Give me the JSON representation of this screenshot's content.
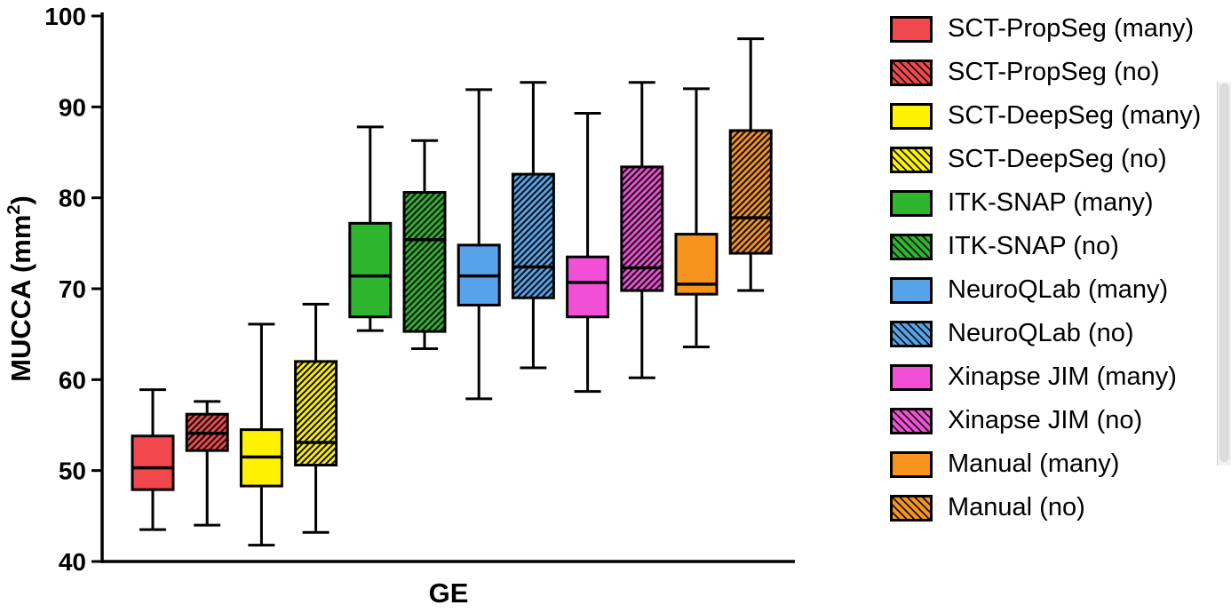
{
  "figure": {
    "ylabel_prefix": "MUCCA (mm",
    "ylabel_sup": "2",
    "ylabel_suffix": ")"
  },
  "chart_data": {
    "type": "boxplot",
    "title": "",
    "xlabel": "GE",
    "ylabel": "MUCCA (mm^2)",
    "ylim": [
      40,
      100
    ],
    "yticks": [
      40,
      50,
      60,
      70,
      80,
      90,
      100
    ],
    "grid": false,
    "legend_position": "right",
    "series": [
      {
        "name": "SCT-PropSeg (many)",
        "color": "#F1484E",
        "hatch": false,
        "low": 43.5,
        "q1": 47.9,
        "median": 50.3,
        "q3": 53.8,
        "high": 58.9
      },
      {
        "name": "SCT-PropSeg (no)",
        "color": "#F1484E",
        "hatch": true,
        "low": 44.0,
        "q1": 52.2,
        "median": 54.1,
        "q3": 56.2,
        "high": 57.6
      },
      {
        "name": "SCT-DeepSeg (many)",
        "color": "#FFF200",
        "hatch": false,
        "low": 41.8,
        "q1": 48.3,
        "median": 51.5,
        "q3": 54.5,
        "high": 66.1
      },
      {
        "name": "SCT-DeepSeg (no)",
        "color": "#FFF200",
        "hatch": true,
        "low": 43.2,
        "q1": 50.6,
        "median": 53.1,
        "q3": 62.0,
        "high": 68.3
      },
      {
        "name": "ITK-SNAP (many)",
        "color": "#2DB52D",
        "hatch": false,
        "low": 65.4,
        "q1": 66.9,
        "median": 71.4,
        "q3": 77.2,
        "high": 87.8
      },
      {
        "name": "ITK-SNAP (no)",
        "color": "#2DB52D",
        "hatch": true,
        "low": 63.4,
        "q1": 65.3,
        "median": 75.4,
        "q3": 80.6,
        "high": 86.3
      },
      {
        "name": "NeuroQLab (many)",
        "color": "#57A3EA",
        "hatch": false,
        "low": 57.9,
        "q1": 68.2,
        "median": 71.4,
        "q3": 74.8,
        "high": 91.9
      },
      {
        "name": "NeuroQLab (no)",
        "color": "#57A3EA",
        "hatch": true,
        "low": 61.3,
        "q1": 69.0,
        "median": 72.4,
        "q3": 82.6,
        "high": 92.7
      },
      {
        "name": "Xinapse JIM (many)",
        "color": "#F14FD6",
        "hatch": false,
        "low": 58.7,
        "q1": 66.9,
        "median": 70.7,
        "q3": 73.5,
        "high": 89.3
      },
      {
        "name": "Xinapse JIM (no)",
        "color": "#F14FD6",
        "hatch": true,
        "low": 60.2,
        "q1": 69.8,
        "median": 72.3,
        "q3": 83.4,
        "high": 92.7
      },
      {
        "name": "Manual (many)",
        "color": "#F7941E",
        "hatch": false,
        "low": 63.6,
        "q1": 69.4,
        "median": 70.5,
        "q3": 76.0,
        "high": 92.0
      },
      {
        "name": "Manual (no)",
        "color": "#F7941E",
        "hatch": true,
        "low": 69.8,
        "q1": 73.9,
        "median": 77.8,
        "q3": 87.4,
        "high": 97.5
      }
    ]
  }
}
